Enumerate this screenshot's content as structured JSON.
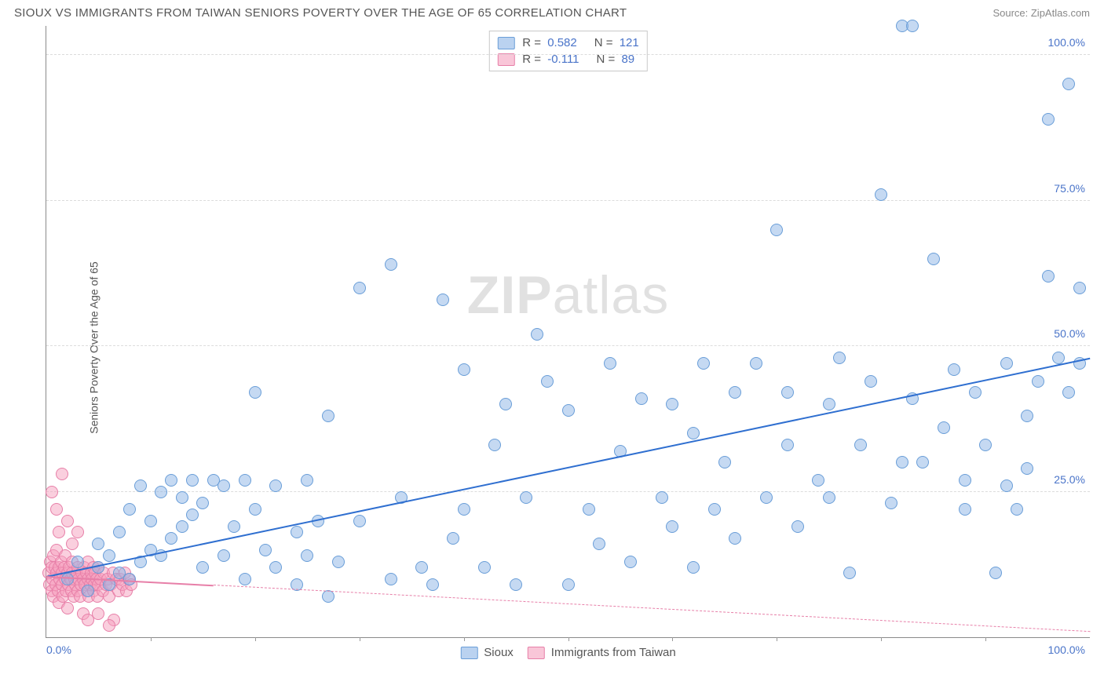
{
  "header": {
    "title": "SIOUX VS IMMIGRANTS FROM TAIWAN SENIORS POVERTY OVER THE AGE OF 65 CORRELATION CHART",
    "source": "Source: ZipAtlas.com"
  },
  "chart": {
    "type": "scatter",
    "ylabel": "Seniors Poverty Over the Age of 65",
    "watermark": "ZIPatlas",
    "xlim": [
      0,
      100
    ],
    "ylim": [
      0,
      105
    ],
    "x_ticks": [
      0,
      100
    ],
    "x_tick_labels": [
      "0.0%",
      "100.0%"
    ],
    "y_gridlines": [
      25,
      50,
      75,
      100
    ],
    "y_tick_labels": [
      "25.0%",
      "50.0%",
      "75.0%",
      "100.0%"
    ],
    "x_minor_ticks": [
      10,
      20,
      30,
      40,
      50,
      60,
      70,
      80,
      90
    ],
    "background_color": "#ffffff",
    "grid_color": "#dcdcdc",
    "axis_color": "#8a8a8a",
    "tick_label_color": "#4a74c9",
    "marker_radius": 8,
    "series": [
      {
        "name": "Sioux",
        "color_fill": "rgba(140,180,230,0.5)",
        "color_border": "#6a9ed8",
        "regression_color": "#2f6fd0",
        "R": "0.582",
        "N": "121",
        "regression": {
          "x1": 0,
          "y1": 10.5,
          "x2": 100,
          "y2": 48,
          "dashed_beyond_x": null
        },
        "points": [
          [
            2,
            10
          ],
          [
            3,
            13
          ],
          [
            4,
            8
          ],
          [
            5,
            12
          ],
          [
            5,
            16
          ],
          [
            6,
            9
          ],
          [
            6,
            14
          ],
          [
            7,
            11
          ],
          [
            7,
            18
          ],
          [
            8,
            10
          ],
          [
            8,
            22
          ],
          [
            9,
            13
          ],
          [
            9,
            26
          ],
          [
            10,
            15
          ],
          [
            10,
            20
          ],
          [
            11,
            14
          ],
          [
            11,
            25
          ],
          [
            12,
            17
          ],
          [
            12,
            27
          ],
          [
            13,
            19
          ],
          [
            13,
            24
          ],
          [
            14,
            21
          ],
          [
            14,
            27
          ],
          [
            15,
            12
          ],
          [
            15,
            23
          ],
          [
            16,
            27
          ],
          [
            17,
            14
          ],
          [
            17,
            26
          ],
          [
            18,
            19
          ],
          [
            19,
            10
          ],
          [
            19,
            27
          ],
          [
            20,
            22
          ],
          [
            20,
            42
          ],
          [
            21,
            15
          ],
          [
            22,
            12
          ],
          [
            22,
            26
          ],
          [
            24,
            9
          ],
          [
            24,
            18
          ],
          [
            25,
            14
          ],
          [
            25,
            27
          ],
          [
            26,
            20
          ],
          [
            27,
            7
          ],
          [
            27,
            38
          ],
          [
            28,
            13
          ],
          [
            30,
            60
          ],
          [
            30,
            20
          ],
          [
            33,
            10
          ],
          [
            33,
            64
          ],
          [
            34,
            24
          ],
          [
            36,
            12
          ],
          [
            37,
            9
          ],
          [
            38,
            58
          ],
          [
            39,
            17
          ],
          [
            40,
            22
          ],
          [
            40,
            46
          ],
          [
            42,
            12
          ],
          [
            43,
            33
          ],
          [
            44,
            40
          ],
          [
            45,
            9
          ],
          [
            46,
            24
          ],
          [
            47,
            52
          ],
          [
            48,
            44
          ],
          [
            50,
            9
          ],
          [
            50,
            39
          ],
          [
            52,
            22
          ],
          [
            53,
            16
          ],
          [
            54,
            47
          ],
          [
            55,
            32
          ],
          [
            56,
            13
          ],
          [
            57,
            41
          ],
          [
            59,
            24
          ],
          [
            60,
            19
          ],
          [
            60,
            40
          ],
          [
            62,
            12
          ],
          [
            62,
            35
          ],
          [
            63,
            47
          ],
          [
            64,
            22
          ],
          [
            65,
            30
          ],
          [
            66,
            42
          ],
          [
            66,
            17
          ],
          [
            68,
            47
          ],
          [
            69,
            24
          ],
          [
            70,
            70
          ],
          [
            71,
            33
          ],
          [
            71,
            42
          ],
          [
            72,
            19
          ],
          [
            74,
            27
          ],
          [
            75,
            40
          ],
          [
            75,
            24
          ],
          [
            76,
            48
          ],
          [
            77,
            11
          ],
          [
            78,
            33
          ],
          [
            79,
            44
          ],
          [
            80,
            76
          ],
          [
            81,
            23
          ],
          [
            82,
            30
          ],
          [
            82,
            105
          ],
          [
            83,
            105
          ],
          [
            83,
            41
          ],
          [
            84,
            30
          ],
          [
            85,
            65
          ],
          [
            86,
            36
          ],
          [
            87,
            46
          ],
          [
            88,
            22
          ],
          [
            88,
            27
          ],
          [
            89,
            42
          ],
          [
            90,
            33
          ],
          [
            91,
            11
          ],
          [
            92,
            47
          ],
          [
            92,
            26
          ],
          [
            93,
            22
          ],
          [
            94,
            29
          ],
          [
            94,
            38
          ],
          [
            95,
            44
          ],
          [
            96,
            62
          ],
          [
            96,
            89
          ],
          [
            97,
            48
          ],
          [
            98,
            42
          ],
          [
            98,
            95
          ],
          [
            99,
            47
          ],
          [
            99,
            60
          ]
        ]
      },
      {
        "name": "Immigrants from Taiwan",
        "color_fill": "rgba(245,160,190,0.5)",
        "color_border": "#e77fa8",
        "regression_color": "#e77fa8",
        "R": "-0.111",
        "N": "89",
        "regression": {
          "x1": 0,
          "y1": 10.5,
          "x2": 100,
          "y2": 1,
          "dashed_beyond_x": 16
        },
        "points": [
          [
            0.2,
            11
          ],
          [
            0.3,
            9
          ],
          [
            0.4,
            13
          ],
          [
            0.5,
            8
          ],
          [
            0.5,
            12
          ],
          [
            0.6,
            10
          ],
          [
            0.7,
            14
          ],
          [
            0.7,
            7
          ],
          [
            0.8,
            12
          ],
          [
            0.9,
            9
          ],
          [
            1.0,
            11
          ],
          [
            1.0,
            15
          ],
          [
            1.1,
            8
          ],
          [
            1.2,
            12
          ],
          [
            1.2,
            6
          ],
          [
            1.3,
            10
          ],
          [
            1.4,
            13
          ],
          [
            1.5,
            9
          ],
          [
            1.5,
            11
          ],
          [
            1.6,
            7
          ],
          [
            1.7,
            12
          ],
          [
            1.8,
            10
          ],
          [
            1.8,
            14
          ],
          [
            1.9,
            8
          ],
          [
            2.0,
            11
          ],
          [
            2.0,
            5
          ],
          [
            2.1,
            9
          ],
          [
            2.2,
            12
          ],
          [
            2.3,
            10
          ],
          [
            2.4,
            8
          ],
          [
            2.5,
            13
          ],
          [
            2.5,
            11
          ],
          [
            2.6,
            7
          ],
          [
            2.7,
            10
          ],
          [
            2.8,
            9
          ],
          [
            2.9,
            11
          ],
          [
            3.0,
            8
          ],
          [
            3.0,
            12
          ],
          [
            3.1,
            10
          ],
          [
            3.2,
            7
          ],
          [
            3.3,
            9
          ],
          [
            3.4,
            11
          ],
          [
            3.5,
            10
          ],
          [
            3.5,
            4
          ],
          [
            3.6,
            12
          ],
          [
            3.7,
            9
          ],
          [
            3.8,
            11
          ],
          [
            3.9,
            8
          ],
          [
            4.0,
            10
          ],
          [
            4.0,
            13
          ],
          [
            4.1,
            7
          ],
          [
            4.2,
            9
          ],
          [
            4.3,
            11
          ],
          [
            4.4,
            10
          ],
          [
            4.5,
            8
          ],
          [
            4.5,
            12
          ],
          [
            4.6,
            9
          ],
          [
            4.7,
            11
          ],
          [
            4.8,
            10
          ],
          [
            4.9,
            7
          ],
          [
            5.0,
            9
          ],
          [
            5.0,
            12
          ],
          [
            5.2,
            10
          ],
          [
            5.4,
            8
          ],
          [
            5.5,
            11
          ],
          [
            5.7,
            9
          ],
          [
            5.9,
            10
          ],
          [
            6.0,
            7
          ],
          [
            6.2,
            9
          ],
          [
            6.4,
            11
          ],
          [
            6.5,
            3
          ],
          [
            6.7,
            10
          ],
          [
            6.9,
            8
          ],
          [
            7.1,
            10
          ],
          [
            7.3,
            9
          ],
          [
            7.5,
            11
          ],
          [
            7.7,
            8
          ],
          [
            7.9,
            10
          ],
          [
            8.1,
            9
          ],
          [
            1.0,
            22
          ],
          [
            0.5,
            25
          ],
          [
            1.5,
            28
          ],
          [
            2.0,
            20
          ],
          [
            3.0,
            18
          ],
          [
            1.2,
            18
          ],
          [
            2.5,
            16
          ],
          [
            4.0,
            3
          ],
          [
            5.0,
            4
          ],
          [
            6.0,
            2
          ]
        ]
      }
    ],
    "legend_top": {
      "border_color": "#c9c9c9",
      "rows": [
        {
          "swatch": "rgba(140,180,230,0.6)",
          "swatch_border": "#6a9ed8",
          "r_label": "R =",
          "r_val": "0.582",
          "n_label": "N =",
          "n_val": "121"
        },
        {
          "swatch": "rgba(245,160,190,0.6)",
          "swatch_border": "#e77fa8",
          "r_label": "R =",
          "r_val": "-0.111",
          "n_label": "N =",
          "n_val": "89"
        }
      ]
    },
    "legend_bottom": [
      {
        "swatch": "rgba(140,180,230,0.6)",
        "swatch_border": "#6a9ed8",
        "label": "Sioux"
      },
      {
        "swatch": "rgba(245,160,190,0.6)",
        "swatch_border": "#e77fa8",
        "label": "Immigrants from Taiwan"
      }
    ]
  }
}
